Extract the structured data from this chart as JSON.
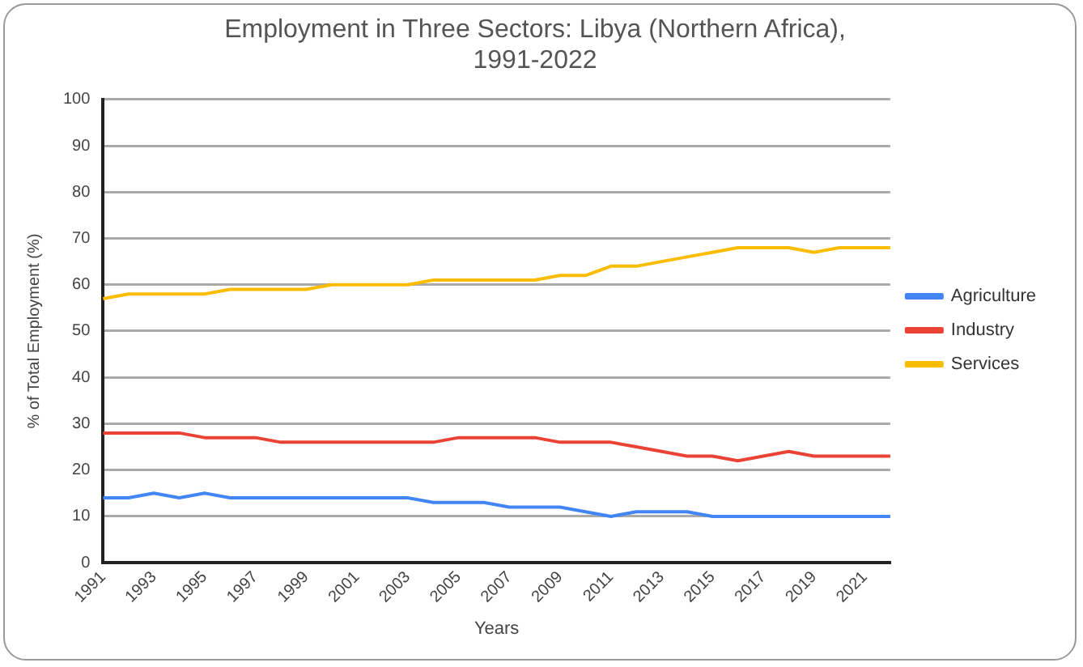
{
  "chart_data": {
    "type": "line",
    "title": "Employment in Three Sectors: Libya (Northern Africa), 1991-2022",
    "xlabel": "Years",
    "ylabel": "% of Total Employment (%)",
    "categories": [
      "1991",
      null,
      "1993",
      null,
      "1995",
      null,
      "1997",
      null,
      "1999",
      null,
      "2001",
      null,
      "2003",
      null,
      "2005",
      null,
      "2007",
      null,
      "2009",
      null,
      "2011",
      null,
      "2013",
      null,
      "2015",
      null,
      "2017",
      null,
      "2019",
      null,
      "2021",
      null
    ],
    "series": [
      {
        "name": "Agriculture",
        "color": "#4285f4",
        "values": [
          14,
          14,
          15,
          14,
          15,
          14,
          14,
          14,
          14,
          14,
          14,
          14,
          14,
          13,
          13,
          13,
          12,
          12,
          12,
          11,
          10,
          11,
          11,
          11,
          10,
          10,
          10,
          10,
          10,
          10,
          10,
          10
        ]
      },
      {
        "name": "Industry",
        "color": "#ea4335",
        "values": [
          28,
          28,
          28,
          28,
          27,
          27,
          27,
          26,
          26,
          26,
          26,
          26,
          26,
          26,
          27,
          27,
          27,
          27,
          26,
          26,
          26,
          25,
          24,
          23,
          23,
          22,
          23,
          24,
          23,
          23,
          23,
          23
        ]
      },
      {
        "name": "Services",
        "color": "#fbbc04",
        "values": [
          57,
          58,
          58,
          58,
          58,
          59,
          59,
          59,
          59,
          60,
          60,
          60,
          60,
          61,
          61,
          61,
          61,
          61,
          62,
          62,
          64,
          64,
          65,
          66,
          67,
          68,
          68,
          68,
          67,
          68,
          68,
          68
        ]
      }
    ],
    "ylim": [
      0,
      100
    ],
    "yticks": [
      0,
      10,
      20,
      30,
      40,
      50,
      60,
      70,
      80,
      90,
      100
    ],
    "grid": "y",
    "legend": "right",
    "marker": "none",
    "line_style": "solid"
  }
}
